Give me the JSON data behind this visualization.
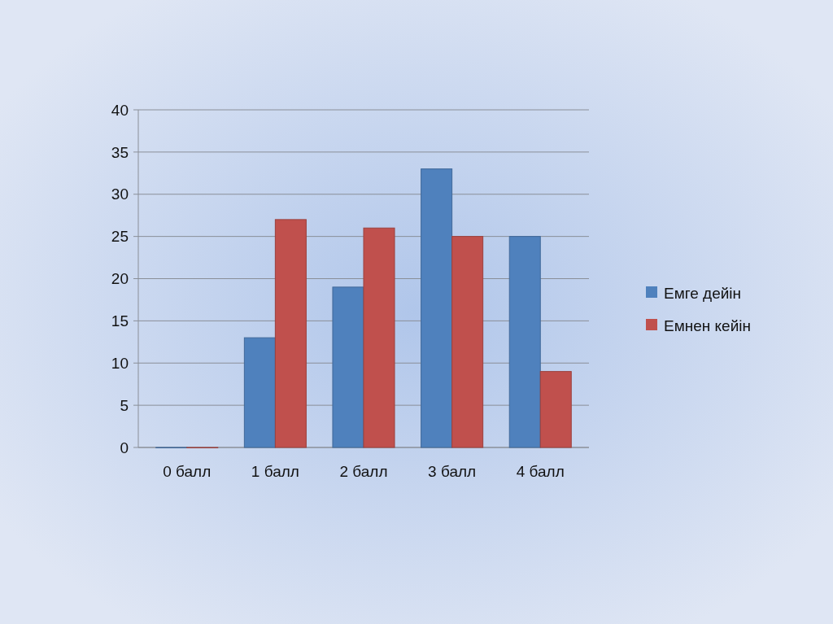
{
  "chart_data": {
    "type": "bar",
    "categories": [
      "0 балл",
      "1 балл",
      "2 балл",
      "3 балл",
      "4 балл"
    ],
    "series": [
      {
        "name": "Емге дейін",
        "color": "#4f81bd",
        "values": [
          0,
          13,
          19,
          33,
          25
        ]
      },
      {
        "name": "Емнен кейін",
        "color": "#c0504d",
        "values": [
          0,
          27,
          26,
          25,
          9
        ]
      }
    ],
    "ylim": [
      0,
      40
    ],
    "yticks": [
      0,
      5,
      10,
      15,
      20,
      25,
      30,
      35,
      40
    ],
    "grid": "y",
    "legend": "right"
  }
}
